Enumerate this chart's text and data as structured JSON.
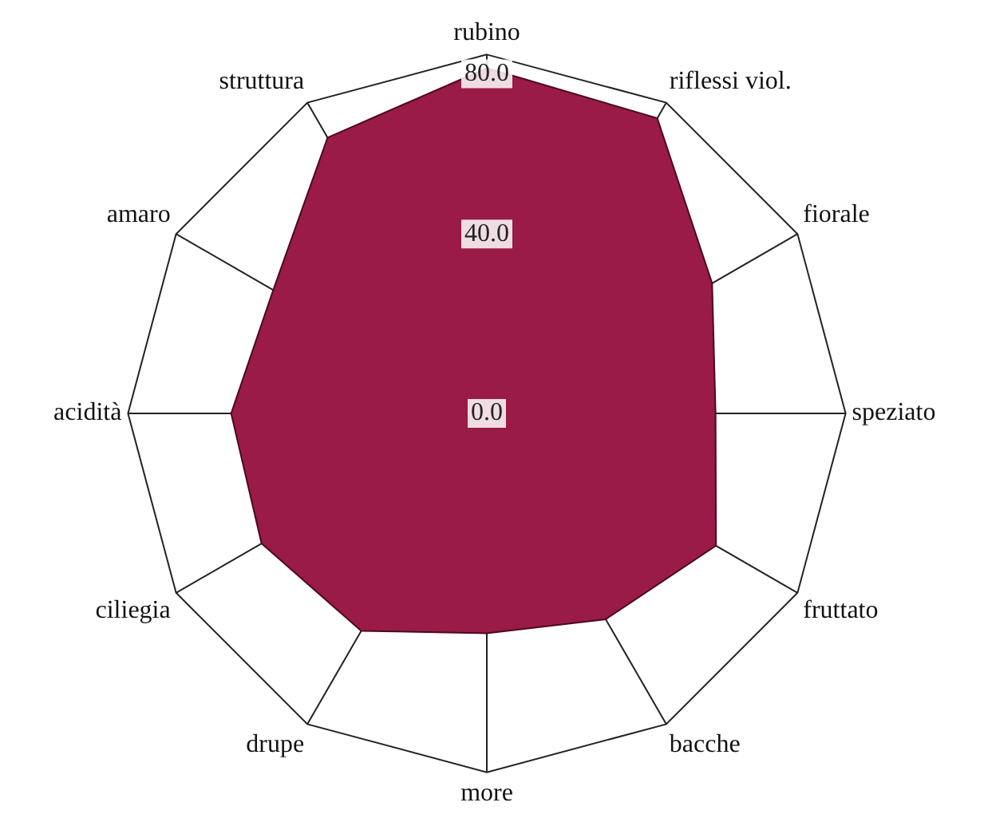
{
  "chart_data": {
    "type": "radar",
    "categories": [
      "rubino",
      "riflessi viol.",
      "fiorale",
      "speziato",
      "fruttato",
      "bacche",
      "more",
      "drupe",
      "ciliegia",
      "acidità",
      "amaro",
      "struttura"
    ],
    "series": [
      {
        "color": "#9a1a48",
        "values": [
          77,
          76,
          58,
          51,
          59,
          53,
          49,
          56,
          58,
          57,
          55,
          71
        ]
      }
    ],
    "ylim": [
      0,
      80
    ],
    "yticks": [
      {
        "value": 0,
        "label": "0.0"
      },
      {
        "value": 40,
        "label": "40.0"
      },
      {
        "value": 80,
        "label": "80.0"
      }
    ],
    "grid": true,
    "legend": false,
    "marker": "none"
  }
}
